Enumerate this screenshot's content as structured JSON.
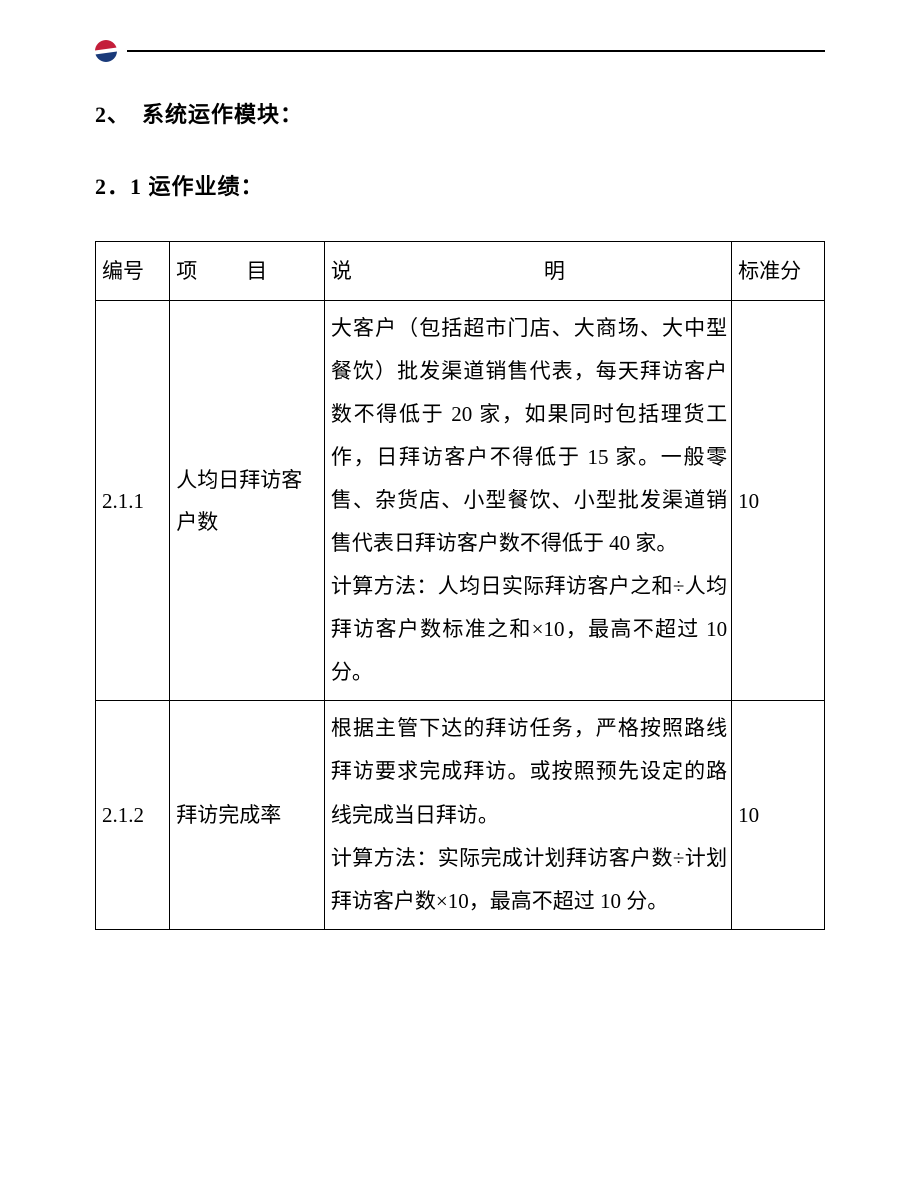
{
  "header": {
    "logo_top_color": "#c41e3a",
    "logo_bottom_color": "#1a3a7a"
  },
  "headings": {
    "section": "2、　系统运作模块：",
    "subsection": "2．1 运作业绩："
  },
  "table": {
    "columns": {
      "id": "编号",
      "item": "项　目",
      "desc": "说　　明",
      "score": "标准分"
    },
    "rows": [
      {
        "id": "2.1.1",
        "item": "人均日拜访客户数",
        "desc": "大客户（包括超市门店、大商场、大中型餐饮）批发渠道销售代表，每天拜访客户数不得低于 20 家，如果同时包括理货工作，日拜访客户不得低于 15 家。一般零售、杂货店、小型餐饮、小型批发渠道销售代表日拜访客户数不得低于 40 家。\n计算方法：人均日实际拜访客户之和÷人均拜访客户数标准之和×10，最高不超过 10 分。",
        "score": "10"
      },
      {
        "id": "2.1.2",
        "item": "拜访完成率",
        "desc": "根据主管下达的拜访任务，严格按照路线拜访要求完成拜访。或按照预先设定的路线完成当日拜访。\n计算方法：实际完成计划拜访客户数÷计划拜访客户数×10，最高不超过 10 分。",
        "score": "10"
      }
    ]
  }
}
